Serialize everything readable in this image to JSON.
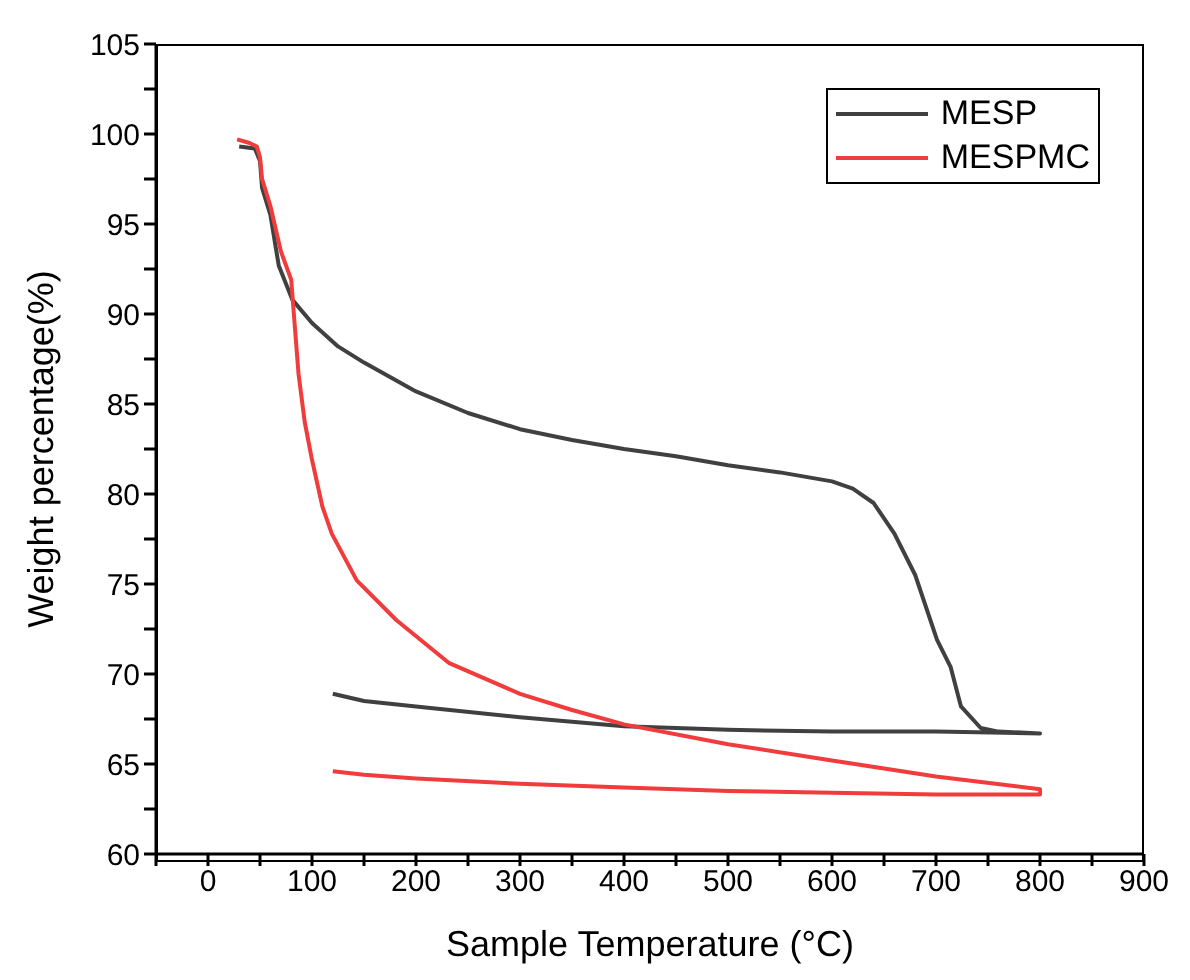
{
  "chart_data": {
    "type": "line",
    "xlabel": "Sample Temperature (°C)",
    "ylabel": "Weight percentage(%)",
    "xlim": [
      -50,
      900
    ],
    "xticks": [
      {
        "value": -50,
        "label": null
      },
      0,
      {
        "value": 50,
        "label": null
      },
      100,
      {
        "value": 150,
        "label": null
      },
      200,
      {
        "value": 250,
        "label": null
      },
      300,
      {
        "value": 350,
        "label": null
      },
      400,
      {
        "value": 450,
        "label": null
      },
      500,
      {
        "value": 550,
        "label": null
      },
      600,
      {
        "value": 650,
        "label": null
      },
      700,
      {
        "value": 750,
        "label": null
      },
      800,
      {
        "value": 850,
        "label": null
      },
      900
    ],
    "ylim": [
      60,
      105
    ],
    "yticks": [
      60,
      {
        "value": 62.5,
        "label": null
      },
      65,
      {
        "value": 67.5,
        "label": null
      },
      70,
      {
        "value": 72.5,
        "label": null
      },
      75,
      {
        "value": 77.5,
        "label": null
      },
      80,
      {
        "value": 82.5,
        "label": null
      },
      85,
      {
        "value": 87.5,
        "label": null
      },
      90,
      {
        "value": 92.5,
        "label": null
      },
      95,
      {
        "value": 97.5,
        "label": null
      },
      100,
      {
        "value": 102.5,
        "label": null
      },
      105
    ],
    "grid": false,
    "legend": "top right",
    "marker": "none",
    "line_style": "solid",
    "series": [
      {
        "name": "MESP",
        "color": "#404040",
        "x": [
          30,
          45,
          50,
          52,
          60,
          68,
          81,
          100,
          125,
          150,
          200,
          250,
          300,
          350,
          400,
          450,
          500,
          550,
          600,
          620,
          640,
          660,
          680,
          701,
          714,
          724,
          743,
          760,
          800,
          700,
          600,
          500,
          400,
          300,
          200,
          150,
          120
        ],
        "values": [
          99.3,
          99.2,
          98.5,
          97,
          95.5,
          92.7,
          90.8,
          89.5,
          88.2,
          87.3,
          85.7,
          84.5,
          83.6,
          83,
          82.5,
          82.1,
          81.6,
          81.2,
          80.7,
          80.3,
          79.5,
          77.8,
          75.5,
          71.9,
          70.4,
          68.2,
          67,
          66.8,
          66.7,
          66.8,
          66.8,
          66.9,
          67.1,
          67.6,
          68.2,
          68.5,
          68.9
        ]
      },
      {
        "name": "MESPMC",
        "color": "#f03c3c",
        "x": [
          28,
          40,
          47,
          50,
          52,
          60,
          70,
          80,
          87,
          93,
          100,
          110,
          119,
          143,
          181,
          232,
          300,
          350,
          400,
          500,
          600,
          700,
          800,
          800,
          700,
          600,
          500,
          400,
          300,
          200,
          150,
          120
        ],
        "values": [
          99.7,
          99.5,
          99.3,
          98.7,
          97.5,
          96,
          93.5,
          91.9,
          86.7,
          84,
          81.9,
          79.3,
          77.8,
          75.2,
          73,
          70.6,
          68.9,
          68,
          67.2,
          66.1,
          65.2,
          64.3,
          63.6,
          63.3,
          63.3,
          63.4,
          63.5,
          63.7,
          63.9,
          64.2,
          64.4,
          64.6
        ]
      }
    ]
  }
}
